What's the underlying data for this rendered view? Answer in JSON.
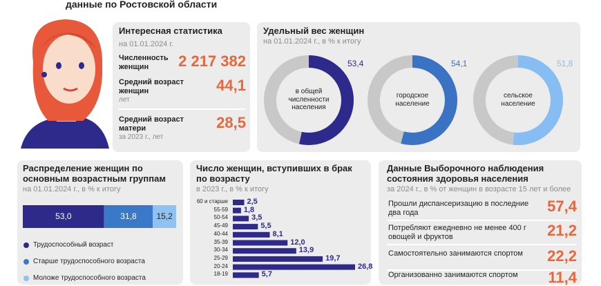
{
  "header": {
    "title": "данные по Ростовской области"
  },
  "stats": {
    "title": "Интересная статистика",
    "date": "на 01.01.2024 г.",
    "items": [
      {
        "label": "Численность женщин",
        "value": "2 217 382"
      },
      {
        "label": "Средний возраст женщин",
        "value": "44,1",
        "note": "лет"
      },
      {
        "label": "Средний возраст матери",
        "value": "28,5",
        "note": "за 2023 г., лет"
      }
    ]
  },
  "chart_data": [
    {
      "type": "donut",
      "title": "Удельный вес женщин",
      "subtitle": "на 01.01.2024 г., в % к итогу",
      "categories": [
        "в общей численности населения",
        "городское население",
        "сельское население"
      ],
      "values": [
        53.4,
        54.1,
        51.8
      ],
      "value_labels": [
        "53,4",
        "54,1",
        "51,8"
      ],
      "colors": [
        "#2e2a8c",
        "#3a72c4",
        "#86bdf2"
      ],
      "rest_color": "#c8c8c8"
    },
    {
      "type": "stacked_bar",
      "title": "Распределение женщин по основным возрастным группам",
      "subtitle": "на 01.01.2024 г., в % к итогу",
      "series": [
        {
          "name": "Трудоспособный возраст",
          "color": "#2e2a8c",
          "values": [
            53.0
          ],
          "value_labels": [
            "53,0"
          ]
        },
        {
          "name": "Старше трудоспособного возраста",
          "color": "#3a78c8",
          "values": [
            31.8
          ],
          "value_labels": [
            "31,8"
          ]
        },
        {
          "name": "Моложе трудоспособного возраста",
          "color": "#8ec2f2",
          "values": [
            15.2
          ],
          "value_labels": [
            "15,2"
          ]
        }
      ]
    },
    {
      "type": "hbar",
      "title": "Число женщин, вступивших в брак по возрасту",
      "subtitle": "в 2023 г., в % к итогу",
      "categories": [
        "60 и старше",
        "55-59",
        "50-54",
        "45-49",
        "40-44",
        "35-39",
        "30-34",
        "25-29",
        "20-24",
        "18-19"
      ],
      "values": [
        2.5,
        1.8,
        3.5,
        5.5,
        8.1,
        12.0,
        13.9,
        19.7,
        26.8,
        5.7
      ],
      "value_labels": [
        "2,5",
        "1,8",
        "3,5",
        "5,5",
        "8,1",
        "12,0",
        "13,9",
        "19,7",
        "26,8",
        "5,7"
      ],
      "color": "#2e2a8c"
    }
  ],
  "health": {
    "title": "Данные Выборочного наблюдения состояния здоровья населения",
    "subtitle": "за 2024 г., в % от женщин в возрасте 15 лет и более",
    "items": [
      {
        "label": "Прошли диспансеризацию в последние два года",
        "value": "57,4"
      },
      {
        "label": "Потребляют ежедневно не менее 400 г овощей и фруктов",
        "value": "21,2"
      },
      {
        "label": "Самостоятельно занимаются спортом",
        "value": "22,2"
      },
      {
        "label": "Организованно занимаются спортом",
        "value": "11,4"
      }
    ]
  }
}
